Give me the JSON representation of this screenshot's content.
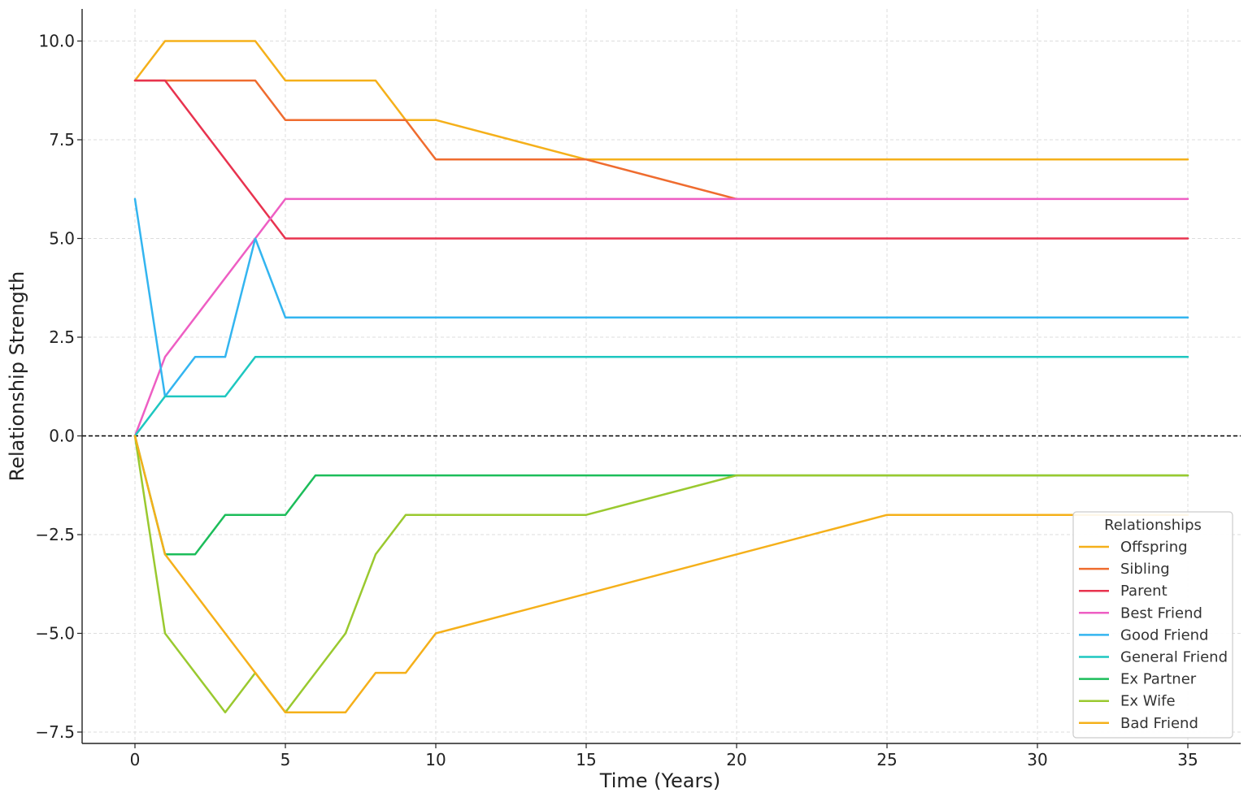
{
  "chart_data": {
    "type": "line",
    "title": "",
    "xlabel": "Time (Years)",
    "ylabel": "Relationship Strength",
    "xlim": [
      -1.75,
      36.75
    ],
    "ylim": [
      -7.85,
      10.8
    ],
    "xticks": [
      0,
      5,
      10,
      15,
      20,
      25,
      30,
      35
    ],
    "xtick_labels": [
      "0",
      "5",
      "10",
      "15",
      "20",
      "25",
      "30",
      "35"
    ],
    "yticks": [
      -7.5,
      -5.0,
      -2.5,
      0.0,
      2.5,
      5.0,
      7.5,
      10.0
    ],
    "ytick_labels": [
      "−7.5",
      "−5.0",
      "−2.5",
      "0.0",
      "2.5",
      "5.0",
      "7.5",
      "10.0"
    ],
    "grid": true,
    "reference_line": {
      "y": 0,
      "style": "dashed",
      "color": "#000000"
    },
    "legend": {
      "title": "Relationships",
      "position": "lower-right"
    },
    "series": [
      {
        "name": "Offspring",
        "color": "#f5b01a",
        "points": [
          [
            0,
            9
          ],
          [
            1,
            10
          ],
          [
            4,
            10
          ],
          [
            5,
            9
          ],
          [
            8,
            9
          ],
          [
            9,
            8
          ],
          [
            10,
            8
          ],
          [
            15,
            7
          ],
          [
            35,
            7
          ]
        ]
      },
      {
        "name": "Sibling",
        "color": "#ef6c2f",
        "points": [
          [
            0,
            9
          ],
          [
            4,
            9
          ],
          [
            5,
            8
          ],
          [
            9,
            8
          ],
          [
            10,
            7
          ],
          [
            15,
            7
          ],
          [
            20,
            6
          ]
        ]
      },
      {
        "name": "Parent",
        "color": "#e8334f",
        "points": [
          [
            0,
            9
          ],
          [
            1,
            9
          ],
          [
            5,
            5
          ],
          [
            35,
            5
          ]
        ]
      },
      {
        "name": "Best Friend",
        "color": "#ee5ec3",
        "points": [
          [
            0,
            0
          ],
          [
            1,
            2
          ],
          [
            4,
            5
          ],
          [
            5,
            6
          ],
          [
            35,
            6
          ]
        ]
      },
      {
        "name": "Good Friend",
        "color": "#33b5f0",
        "points": [
          [
            0,
            6
          ],
          [
            1,
            1
          ],
          [
            2,
            2
          ],
          [
            3,
            2
          ],
          [
            4,
            5
          ],
          [
            5,
            3
          ],
          [
            35,
            3
          ]
        ]
      },
      {
        "name": "General Friend",
        "color": "#1ec7c0",
        "points": [
          [
            0,
            0
          ],
          [
            1,
            1
          ],
          [
            3,
            1
          ],
          [
            4,
            2
          ],
          [
            35,
            2
          ]
        ]
      },
      {
        "name": "Ex Partner",
        "color": "#1cbd5a",
        "points": [
          [
            0,
            0
          ],
          [
            1,
            -3
          ],
          [
            2,
            -3
          ],
          [
            3,
            -2
          ],
          [
            5,
            -2
          ],
          [
            6,
            -1
          ],
          [
            35,
            -1
          ]
        ]
      },
      {
        "name": "Ex Wife",
        "color": "#9ac92f",
        "points": [
          [
            0,
            0
          ],
          [
            1,
            -5
          ],
          [
            3,
            -7
          ],
          [
            4,
            -6
          ],
          [
            5,
            -7
          ],
          [
            7,
            -5
          ],
          [
            8,
            -3
          ],
          [
            9,
            -2
          ],
          [
            15,
            -2
          ],
          [
            20,
            -1
          ],
          [
            35,
            -1
          ]
        ]
      },
      {
        "name": "Bad Friend",
        "color": "#f5b01a",
        "points": [
          [
            0,
            0
          ],
          [
            1,
            -3
          ],
          [
            5,
            -7
          ],
          [
            7,
            -7
          ],
          [
            8,
            -6
          ],
          [
            9,
            -6
          ],
          [
            10,
            -5
          ],
          [
            25,
            -2
          ],
          [
            35,
            -2
          ]
        ]
      }
    ]
  }
}
